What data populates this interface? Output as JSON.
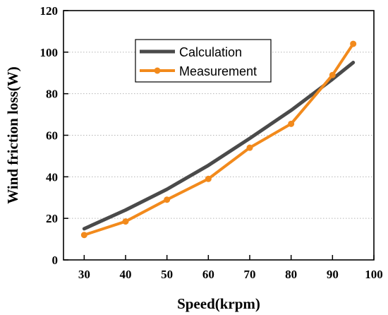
{
  "chart_data": {
    "type": "line",
    "xlabel": "Speed(krpm)",
    "ylabel": "Wind friction loss(W)",
    "xlim": [
      25,
      100
    ],
    "ylim": [
      0,
      120
    ],
    "xticks": [
      30,
      40,
      50,
      60,
      70,
      80,
      90,
      100
    ],
    "yticks": [
      0,
      20,
      40,
      60,
      80,
      100,
      120
    ],
    "grid": true,
    "legend_position": "top-center",
    "series": [
      {
        "name": "Calculation",
        "color": "#4a4a4a",
        "marker": "none",
        "x": [
          30,
          40,
          50,
          60,
          70,
          80,
          90,
          95
        ],
        "y": [
          15,
          24,
          34,
          45.5,
          58.5,
          72,
          87,
          95
        ]
      },
      {
        "name": "Measurement",
        "color": "#f28a1c",
        "marker": "circle",
        "x": [
          30,
          40,
          50,
          60,
          70,
          80,
          90,
          95
        ],
        "y": [
          12,
          18.5,
          29,
          39,
          54,
          65.5,
          89,
          104
        ]
      }
    ]
  }
}
